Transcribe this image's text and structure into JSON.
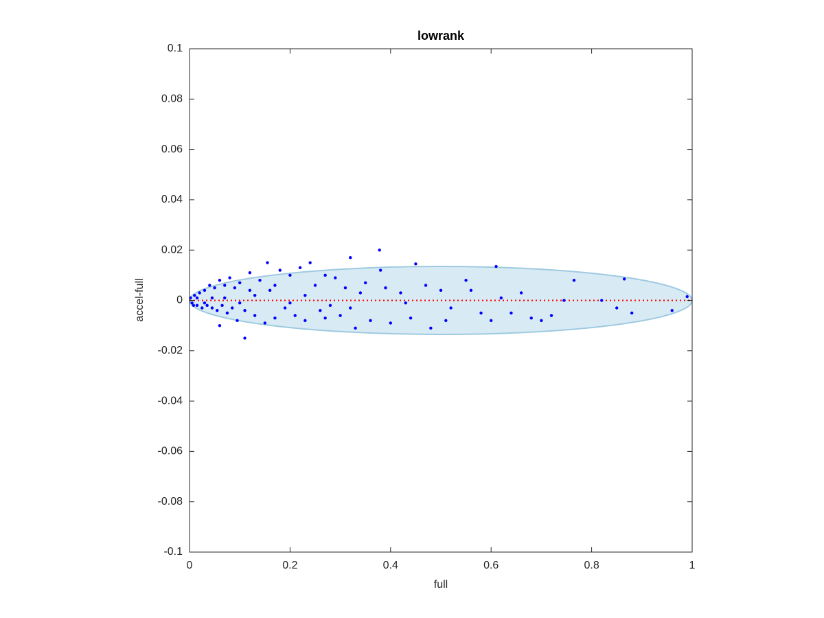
{
  "chart_data": {
    "type": "scatter",
    "title": "lowrank",
    "xlabel": "full",
    "ylabel": "accel-full",
    "xlim": [
      0,
      1
    ],
    "ylim": [
      -0.1,
      0.1
    ],
    "xticks": [
      0,
      0.2,
      0.4,
      0.6,
      0.8,
      1
    ],
    "yticks": [
      -0.1,
      -0.08,
      -0.06,
      -0.04,
      -0.02,
      0,
      0.02,
      0.04,
      0.06,
      0.08,
      0.1
    ],
    "color": "#0000ff",
    "ellipse": {
      "center": [
        0.5,
        0
      ],
      "radii": [
        0.5,
        0.0135
      ],
      "color": "#9ecae1"
    },
    "reference_line": {
      "y": 0,
      "color": "#ff0000"
    },
    "x": [
      0.378,
      0.32,
      0.11,
      0.61,
      0.45,
      0.765,
      0.865,
      0.82,
      0.85,
      0.88,
      0.96,
      0.99,
      0.745,
      0.72,
      0.7,
      0.68,
      0.66,
      0.64,
      0.62,
      0.6,
      0.58,
      0.56,
      0.55,
      0.52,
      0.5,
      0.48,
      0.47,
      0.44,
      0.42,
      0.4,
      0.38,
      0.36,
      0.35,
      0.34,
      0.33,
      0.31,
      0.3,
      0.29,
      0.28,
      0.27,
      0.26,
      0.25,
      0.24,
      0.23,
      0.22,
      0.21,
      0.2,
      0.19,
      0.18,
      0.17,
      0.16,
      0.155,
      0.15,
      0.14,
      0.13,
      0.12,
      0.11,
      0.1,
      0.095,
      0.09,
      0.085,
      0.08,
      0.075,
      0.07,
      0.065,
      0.06,
      0.055,
      0.05,
      0.045,
      0.04,
      0.035,
      0.03,
      0.025,
      0.02,
      0.015,
      0.01,
      0.005,
      0.002,
      0.06,
      0.13,
      0.2,
      0.045,
      0.03,
      0.015,
      0.008,
      0.07,
      0.1,
      0.12,
      0.17,
      0.23,
      0.27,
      0.32,
      0.39,
      0.43,
      0.51
    ],
    "values": [
      0.02,
      0.017,
      -0.015,
      0.0135,
      0.0145,
      0.008,
      0.0085,
      0,
      -0.003,
      -0.005,
      -0.004,
      0.0015,
      0,
      -0.006,
      -0.008,
      -0.007,
      0.003,
      -0.005,
      0.001,
      -0.008,
      -0.005,
      0.004,
      0.008,
      -0.003,
      0.004,
      -0.011,
      0.006,
      -0.007,
      0.003,
      -0.009,
      0.012,
      -0.008,
      0.007,
      0.003,
      -0.011,
      0.005,
      -0.006,
      0.009,
      -0.002,
      0.01,
      -0.004,
      0.006,
      0.015,
      -0.008,
      0.013,
      -0.006,
      0.01,
      -0.003,
      0.012,
      -0.007,
      0.004,
      0.015,
      -0.009,
      0.008,
      -0.006,
      0.011,
      -0.004,
      0.007,
      -0.008,
      0.005,
      -0.003,
      0.009,
      -0.005,
      0.006,
      -0.002,
      0.008,
      -0.004,
      0.005,
      -0.003,
      0.006,
      -0.002,
      0.004,
      -0.003,
      0.003,
      -0.002,
      0.002,
      -0.001,
      0.001,
      -0.01,
      0.002,
      -0.001,
      0.001,
      -0.001,
      0.001,
      -0.002,
      0.001,
      -0.001,
      0.004,
      0.006,
      0.002,
      -0.007,
      -0.003,
      0.005,
      -0.001,
      -0.008
    ]
  }
}
